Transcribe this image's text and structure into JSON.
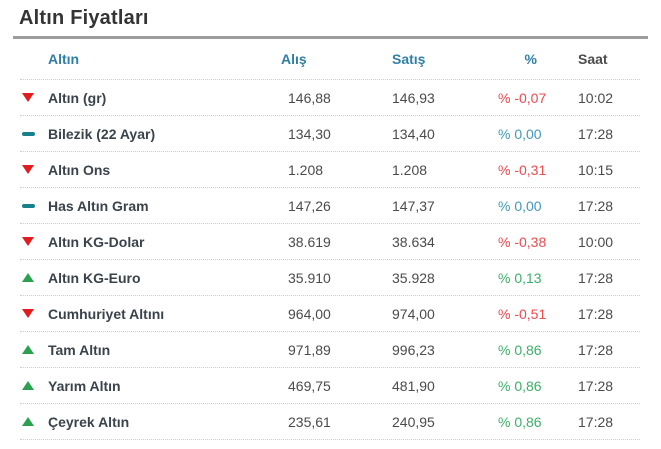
{
  "page": {
    "title": "Altın Fiyatları"
  },
  "table": {
    "headers": {
      "instrument": "Altın",
      "buy": "Alış",
      "sell": "Satış",
      "percent": "%",
      "time": "Saat"
    },
    "rows": [
      {
        "name": "Altın (gr)",
        "trend": "down",
        "icon": "down-triangle-icon",
        "buy": "146,88",
        "sell": "146,93",
        "pct": "% -0,07",
        "time": "10:02"
      },
      {
        "name": "Bilezik (22 Ayar)",
        "trend": "flat",
        "icon": "flat-dash-icon",
        "buy": "134,30",
        "sell": "134,40",
        "pct": "% 0,00",
        "time": "17:28"
      },
      {
        "name": "Altın Ons",
        "trend": "down",
        "icon": "down-triangle-icon",
        "buy": "1.208",
        "sell": "1.208",
        "pct": "% -0,31",
        "time": "10:15"
      },
      {
        "name": "Has Altın Gram",
        "trend": "flat",
        "icon": "flat-dash-icon",
        "buy": "147,26",
        "sell": "147,37",
        "pct": "% 0,00",
        "time": "17:28"
      },
      {
        "name": "Altın KG-Dolar",
        "trend": "down",
        "icon": "down-triangle-icon",
        "buy": "38.619",
        "sell": "38.634",
        "pct": "% -0,38",
        "time": "10:00"
      },
      {
        "name": "Altın KG-Euro",
        "trend": "up",
        "icon": "up-triangle-icon",
        "buy": "35.910",
        "sell": "35.928",
        "pct": "% 0,13",
        "time": "17:28"
      },
      {
        "name": "Cumhuriyet Altını",
        "trend": "down",
        "icon": "down-triangle-icon",
        "buy": "964,00",
        "sell": "974,00",
        "pct": "% -0,51",
        "time": "17:28"
      },
      {
        "name": "Tam Altın",
        "trend": "up",
        "icon": "up-triangle-icon",
        "buy": "971,89",
        "sell": "996,23",
        "pct": "% 0,86",
        "time": "17:28"
      },
      {
        "name": "Yarım Altın",
        "trend": "up",
        "icon": "up-triangle-icon",
        "buy": "469,75",
        "sell": "481,90",
        "pct": "% 0,86",
        "time": "17:28"
      },
      {
        "name": "Çeyrek Altın",
        "trend": "up",
        "icon": "up-triangle-icon",
        "buy": "235,61",
        "sell": "240,95",
        "pct": "% 0,86",
        "time": "17:28"
      }
    ]
  },
  "colors": {
    "title": "#343434",
    "title_rule": "#9d9d9d",
    "header_blue": "#2f7fa6",
    "row_label": "#3a434c",
    "value_text": "#4b4b4b",
    "pct_down": "#ef4a4f",
    "pct_up": "#3caf68",
    "pct_zero": "#3f9ab8",
    "icon_down_red": "#e11c1c",
    "icon_up_green": "#2aa14e",
    "icon_flat_teal": "#18818e",
    "row_divider": "#cccccc"
  }
}
